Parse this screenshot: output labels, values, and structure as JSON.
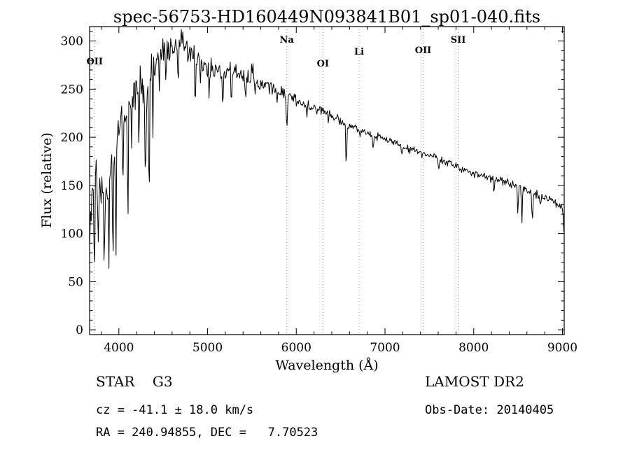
{
  "chart_data": {
    "type": "line",
    "title": "spec-56753-HD160449N093841B01_sp01-040.fits",
    "xlabel": "Wavelength (Å)",
    "ylabel": "Flux (relative)",
    "xlim": [
      3670,
      9020
    ],
    "ylim": [
      -5,
      315
    ],
    "xticks_major": [
      4000,
      5000,
      6000,
      7000,
      8000,
      9000
    ],
    "xtick_minor_step": 200,
    "yticks_major": [
      0,
      50,
      100,
      150,
      200,
      250,
      300
    ],
    "ytick_minor_step": 10,
    "grid": false,
    "legend": "none",
    "frame_color": "#000000",
    "trace_color": "#000000",
    "marker_line_color": "#9a9a9a",
    "spectral_lines": [
      {
        "label": "OII",
        "wavelength": 3727,
        "label_y": 92
      },
      {
        "label": "Na",
        "wavelength": 5893,
        "label_y": 61
      },
      {
        "label": "OI",
        "wavelength": 6300,
        "label_y": 95
      },
      {
        "label": "Li",
        "wavelength": 6708,
        "label_y": 78
      },
      {
        "label": "OII",
        "wavelength": 7430,
        "label_y": 76
      },
      {
        "label": "SII",
        "wavelength": 7825,
        "label_y": 61
      }
    ],
    "spectrum": {
      "seed": 42,
      "sample_step": 8,
      "continuum": [
        [
          3670,
          100
        ],
        [
          3700,
          150
        ],
        [
          3740,
          162
        ],
        [
          3780,
          152
        ],
        [
          3820,
          146
        ],
        [
          3860,
          140
        ],
        [
          3900,
          180
        ],
        [
          3950,
          195
        ],
        [
          4000,
          215
        ],
        [
          4050,
          222
        ],
        [
          4100,
          235
        ],
        [
          4150,
          245
        ],
        [
          4200,
          252
        ],
        [
          4250,
          248
        ],
        [
          4300,
          255
        ],
        [
          4350,
          262
        ],
        [
          4400,
          272
        ],
        [
          4450,
          286
        ],
        [
          4500,
          293
        ],
        [
          4550,
          291
        ],
        [
          4600,
          289
        ],
        [
          4650,
          293
        ],
        [
          4700,
          297
        ],
        [
          4750,
          296
        ],
        [
          4800,
          293
        ],
        [
          4850,
          287
        ],
        [
          4900,
          280
        ],
        [
          4950,
          276
        ],
        [
          5000,
          273
        ],
        [
          5100,
          269
        ],
        [
          5200,
          267
        ],
        [
          5300,
          269
        ],
        [
          5400,
          265
        ],
        [
          5500,
          259
        ],
        [
          5600,
          254
        ],
        [
          5700,
          251
        ],
        [
          5800,
          248
        ],
        [
          5900,
          243
        ],
        [
          6000,
          239
        ],
        [
          6100,
          234
        ],
        [
          6200,
          230
        ],
        [
          6300,
          227
        ],
        [
          6400,
          221
        ],
        [
          6500,
          216
        ],
        [
          6600,
          212
        ],
        [
          6700,
          209
        ],
        [
          6800,
          205
        ],
        [
          6900,
          201
        ],
        [
          7000,
          198
        ],
        [
          7100,
          194
        ],
        [
          7200,
          191
        ],
        [
          7300,
          188
        ],
        [
          7400,
          184
        ],
        [
          7500,
          181
        ],
        [
          7600,
          178
        ],
        [
          7700,
          174
        ],
        [
          7800,
          170
        ],
        [
          7900,
          167
        ],
        [
          8000,
          163
        ],
        [
          8100,
          160
        ],
        [
          8200,
          157
        ],
        [
          8300,
          154
        ],
        [
          8400,
          152
        ],
        [
          8500,
          149
        ],
        [
          8600,
          144
        ],
        [
          8700,
          141
        ],
        [
          8800,
          137
        ],
        [
          8900,
          133
        ],
        [
          8960,
          128
        ],
        [
          9000,
          126
        ],
        [
          9006,
          118
        ],
        [
          9016,
          96
        ]
      ],
      "absorption_features": [
        [
          3727,
          45,
          6
        ],
        [
          3770,
          55,
          5
        ],
        [
          3835,
          70,
          5
        ],
        [
          3889,
          85,
          5
        ],
        [
          3933,
          125,
          6
        ],
        [
          3968,
          130,
          5
        ],
        [
          4045,
          60,
          4
        ],
        [
          4101,
          140,
          4
        ],
        [
          4144,
          50,
          4
        ],
        [
          4227,
          70,
          4
        ],
        [
          4300,
          90,
          6
        ],
        [
          4340,
          130,
          5
        ],
        [
          4383,
          65,
          4
        ],
        [
          4455,
          40,
          4
        ],
        [
          4531,
          40,
          4
        ],
        [
          4668,
          40,
          4
        ],
        [
          4780,
          30,
          4
        ],
        [
          4861,
          70,
          5
        ],
        [
          4921,
          30,
          4
        ],
        [
          5015,
          25,
          4
        ],
        [
          5172,
          32,
          7
        ],
        [
          5270,
          28,
          5
        ],
        [
          5430,
          20,
          5
        ],
        [
          5780,
          15,
          4
        ],
        [
          5893,
          33,
          6
        ],
        [
          6122,
          14,
          4
        ],
        [
          6360,
          10,
          4
        ],
        [
          6563,
          46,
          5
        ],
        [
          6717,
          10,
          4
        ],
        [
          6867,
          12,
          6
        ],
        [
          7190,
          10,
          5
        ],
        [
          7605,
          12,
          7
        ],
        [
          8227,
          12,
          5
        ],
        [
          8498,
          28,
          5
        ],
        [
          8542,
          36,
          5
        ],
        [
          8662,
          32,
          5
        ],
        [
          8750,
          15,
          4
        ]
      ],
      "noise_profile": [
        [
          3670,
          15
        ],
        [
          3900,
          14
        ],
        [
          4200,
          11
        ],
        [
          4500,
          9
        ],
        [
          4800,
          7
        ],
        [
          5200,
          5
        ],
        [
          5600,
          4
        ],
        [
          6000,
          3.2
        ],
        [
          6500,
          2.6
        ],
        [
          7000,
          2.2
        ],
        [
          7600,
          2
        ],
        [
          8300,
          2
        ],
        [
          8700,
          2.4
        ],
        [
          9020,
          2.4
        ]
      ],
      "spikes": {
        "probability": 0.04,
        "max_extra_depth": 50,
        "below_wavelength": 4600
      }
    }
  },
  "annotations": {
    "class_label": "STAR    G3",
    "survey": "LAMOST DR2",
    "cz": "cz = -41.1 ± 18.0 km/s",
    "obs_date": "Obs-Date: 20140405",
    "radec": "RA = 240.94855, DEC =   7.70523"
  }
}
